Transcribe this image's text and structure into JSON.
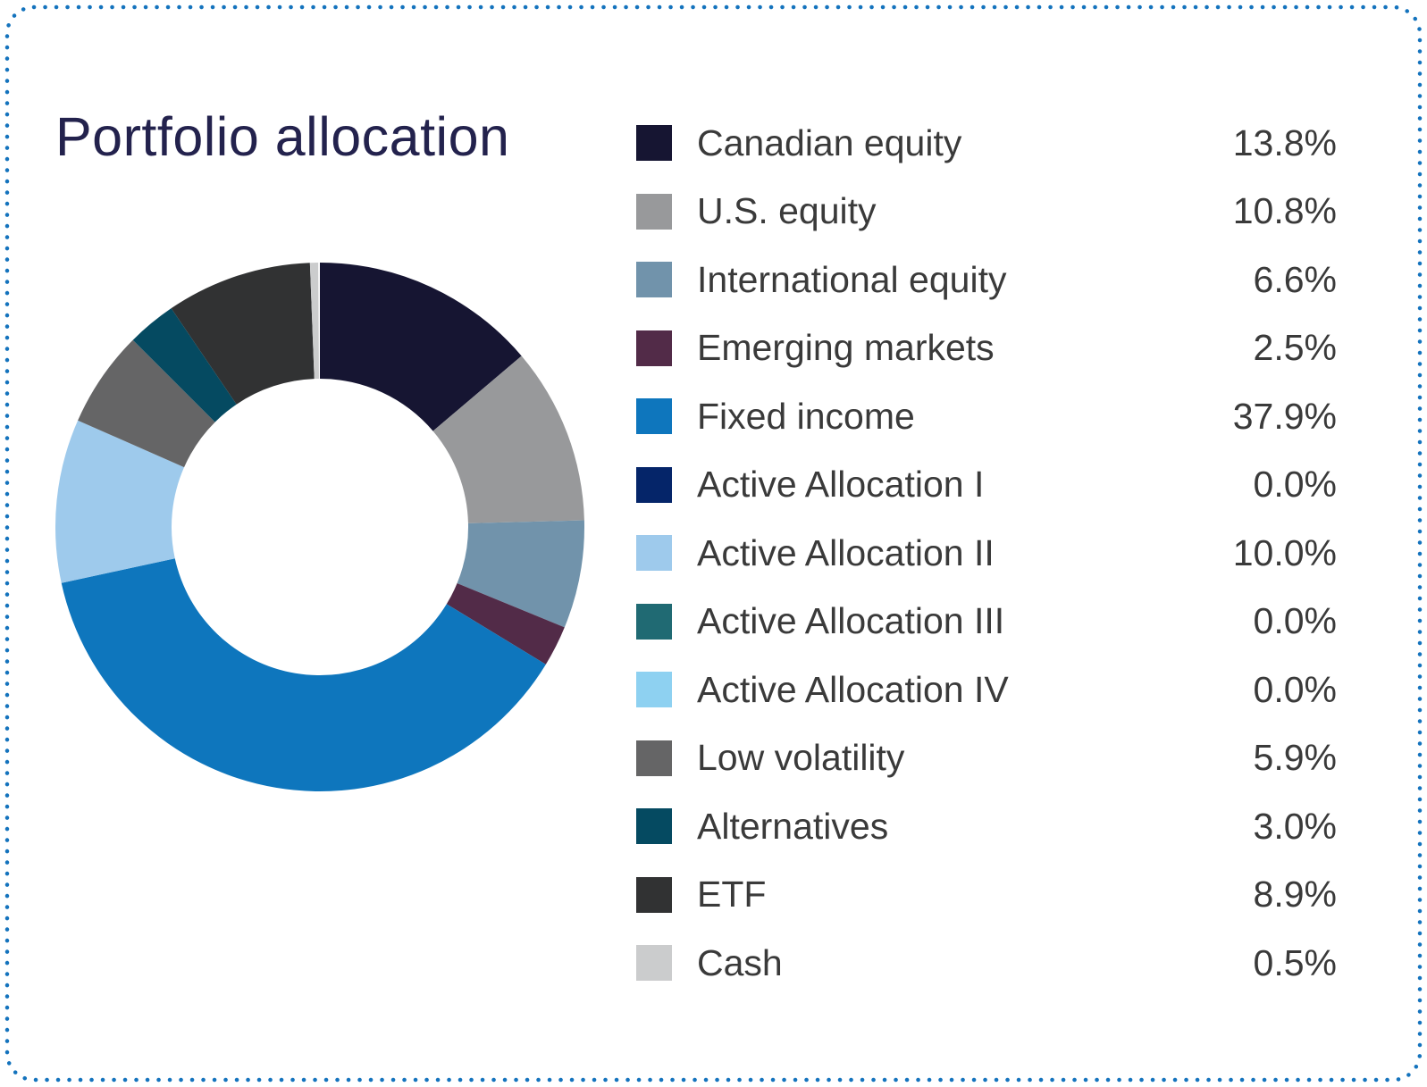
{
  "card": {
    "title": "Portfolio allocation",
    "title_color": "#23224d",
    "border_color": "#1473bd",
    "background_color": "#ffffff"
  },
  "chart_data": {
    "type": "pie",
    "variant": "donut",
    "title": "Portfolio allocation",
    "direction": "clockwise",
    "start_angle_deg": 0,
    "legend_position": "right",
    "categories": [
      "Canadian equity",
      "U.S. equity",
      "International equity",
      "Emerging markets",
      "Fixed income",
      "Active Allocation I",
      "Active Allocation II",
      "Active Allocation III",
      "Active Allocation IV",
      "Low volatility",
      "Alternatives",
      "ETF",
      "Cash"
    ],
    "values": [
      13.8,
      10.8,
      6.6,
      2.5,
      37.9,
      0.0,
      10.0,
      0.0,
      0.0,
      5.9,
      3.0,
      8.9,
      0.5
    ],
    "labels": [
      "13.8%",
      "10.8%",
      "6.6%",
      "2.5%",
      "37.9%",
      "0.0%",
      "10.0%",
      "0.0%",
      "0.0%",
      "5.9%",
      "3.0%",
      "8.9%",
      "0.5%"
    ],
    "colors": [
      "#161532",
      "#98999b",
      "#7193ab",
      "#522b48",
      "#0e76bd",
      "#052569",
      "#9ecaec",
      "#206a73",
      "#8ed1f1",
      "#656566",
      "#054a61",
      "#313233",
      "#cbcccd"
    ]
  }
}
